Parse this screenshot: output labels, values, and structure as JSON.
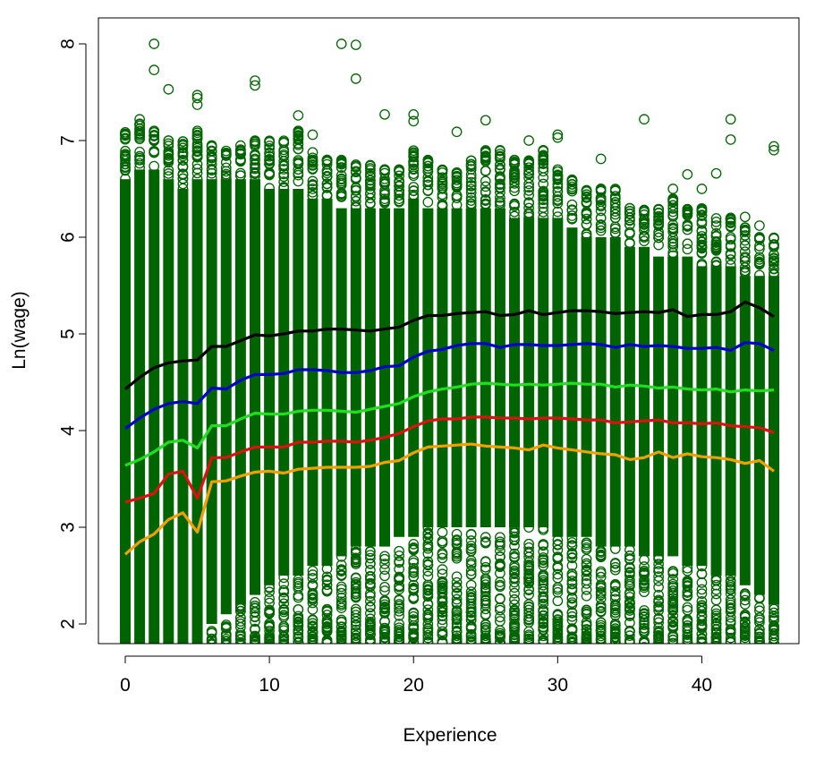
{
  "chart_data": {
    "type": "scatter",
    "title": "",
    "xlabel": "Experience",
    "ylabel": "Ln(wage)",
    "xlim": [
      0,
      45
    ],
    "ylim": [
      1.78,
      8.25
    ],
    "xticks": [
      "0",
      "10",
      "20",
      "30",
      "40"
    ],
    "yticks": [
      "2",
      "3",
      "4",
      "5",
      "6",
      "7",
      "8"
    ],
    "grid": false,
    "legend": "none",
    "point_color": "#006400",
    "scatter_band": {
      "x_values": [
        0,
        1,
        2,
        3,
        4,
        5,
        6,
        7,
        8,
        9,
        10,
        11,
        12,
        13,
        14,
        15,
        16,
        17,
        18,
        19,
        20,
        21,
        22,
        23,
        24,
        25,
        26,
        27,
        28,
        29,
        30,
        31,
        32,
        33,
        34,
        35,
        36,
        37,
        38,
        39,
        40,
        41,
        42,
        43,
        44,
        45
      ],
      "y_top": [
        7.1,
        7.2,
        7.1,
        7.0,
        7.0,
        7.1,
        6.95,
        6.9,
        6.95,
        7.0,
        7.0,
        7.0,
        7.1,
        6.9,
        6.8,
        6.8,
        6.75,
        6.75,
        6.7,
        6.7,
        6.9,
        6.8,
        6.7,
        6.7,
        6.8,
        6.9,
        6.9,
        6.8,
        6.8,
        6.9,
        6.7,
        6.6,
        6.5,
        6.5,
        6.5,
        6.3,
        6.3,
        6.3,
        6.4,
        6.3,
        6.3,
        6.2,
        6.2,
        6.1,
        6.0,
        6.0
      ],
      "y_dense_top": [
        6.6,
        6.7,
        6.7,
        6.6,
        6.5,
        6.6,
        6.6,
        6.6,
        6.6,
        6.6,
        6.5,
        6.5,
        6.5,
        6.4,
        6.4,
        6.3,
        6.3,
        6.3,
        6.3,
        6.3,
        6.4,
        6.3,
        6.3,
        6.3,
        6.3,
        6.3,
        6.3,
        6.2,
        6.2,
        6.2,
        6.2,
        6.1,
        6.0,
        6.0,
        6.0,
        5.9,
        5.9,
        5.8,
        5.8,
        5.8,
        5.7,
        5.7,
        5.7,
        5.6,
        5.6,
        5.6
      ],
      "y_dense_bottom": [
        1.78,
        1.78,
        1.78,
        1.78,
        1.78,
        1.78,
        2.0,
        2.1,
        2.2,
        2.3,
        2.4,
        2.5,
        2.5,
        2.6,
        2.6,
        2.7,
        2.8,
        2.8,
        2.8,
        2.9,
        2.9,
        3.0,
        3.0,
        3.0,
        3.0,
        3.0,
        3.0,
        3.0,
        3.0,
        3.0,
        2.9,
        2.9,
        2.9,
        2.8,
        2.8,
        2.8,
        2.7,
        2.7,
        2.7,
        2.6,
        2.6,
        2.5,
        2.5,
        2.4,
        2.3,
        2.2
      ],
      "y_bottom": [
        1.78,
        1.78,
        1.78,
        1.78,
        1.78,
        1.78,
        1.78,
        1.78,
        1.78,
        1.78,
        1.78,
        1.78,
        1.8,
        1.8,
        1.8,
        1.8,
        1.8,
        1.8,
        1.8,
        1.8,
        1.8,
        1.8,
        1.8,
        1.8,
        1.8,
        1.8,
        1.8,
        1.8,
        1.8,
        1.8,
        1.8,
        1.8,
        1.8,
        1.8,
        1.8,
        1.8,
        1.8,
        1.8,
        1.8,
        1.8,
        1.8,
        1.8,
        1.8,
        1.8,
        1.8,
        1.8
      ]
    },
    "outliers": [
      {
        "x": 2,
        "y": 8.0
      },
      {
        "x": 2,
        "y": 7.73
      },
      {
        "x": 3,
        "y": 7.53
      },
      {
        "x": 5,
        "y": 7.47
      },
      {
        "x": 5,
        "y": 7.44
      },
      {
        "x": 5,
        "y": 7.37
      },
      {
        "x": 9,
        "y": 7.62
      },
      {
        "x": 9,
        "y": 7.57
      },
      {
        "x": 15,
        "y": 8.0
      },
      {
        "x": 16,
        "y": 7.99
      },
      {
        "x": 16,
        "y": 7.64
      },
      {
        "x": 18,
        "y": 7.27
      },
      {
        "x": 20,
        "y": 7.27
      },
      {
        "x": 20,
        "y": 7.2
      },
      {
        "x": 1,
        "y": 7.22
      },
      {
        "x": 12,
        "y": 7.26
      },
      {
        "x": 13,
        "y": 7.06
      },
      {
        "x": 25,
        "y": 7.21
      },
      {
        "x": 23,
        "y": 7.09
      },
      {
        "x": 36,
        "y": 7.22
      },
      {
        "x": 42,
        "y": 7.22
      },
      {
        "x": 42,
        "y": 7.01
      },
      {
        "x": 45,
        "y": 6.94
      },
      {
        "x": 45,
        "y": 6.9
      },
      {
        "x": 41,
        "y": 6.66
      },
      {
        "x": 39,
        "y": 6.65
      },
      {
        "x": 43,
        "y": 6.21
      },
      {
        "x": 44,
        "y": 6.12
      },
      {
        "x": 30,
        "y": 7.06
      },
      {
        "x": 30,
        "y": 7.03
      },
      {
        "x": 28,
        "y": 7.0
      },
      {
        "x": 33,
        "y": 6.81
      },
      {
        "x": 38,
        "y": 6.5
      },
      {
        "x": 40,
        "y": 6.5
      },
      {
        "x": 5,
        "y": 1.85
      },
      {
        "x": 8,
        "y": 1.8
      },
      {
        "x": 12,
        "y": 1.87
      },
      {
        "x": 19,
        "y": 1.9
      },
      {
        "x": 24,
        "y": 1.95
      },
      {
        "x": 29,
        "y": 1.97
      },
      {
        "x": 33,
        "y": 1.85
      },
      {
        "x": 36,
        "y": 1.76
      },
      {
        "x": 38,
        "y": 1.97
      },
      {
        "x": 39,
        "y": 1.86
      },
      {
        "x": 41,
        "y": 1.94
      },
      {
        "x": 43,
        "y": 2.07
      },
      {
        "x": 44,
        "y": 1.78
      },
      {
        "x": 45,
        "y": 2.05
      },
      {
        "x": 36,
        "y": 2.1
      },
      {
        "x": 35,
        "y": 2.16
      },
      {
        "x": 34,
        "y": 1.92
      },
      {
        "x": 31,
        "y": 2.2
      },
      {
        "x": 27,
        "y": 2.2
      },
      {
        "x": 22,
        "y": 2.12
      }
    ],
    "series": [
      {
        "color": "#000000",
        "x": [
          0,
          1,
          2,
          3,
          4,
          5,
          6,
          7,
          8,
          9,
          10,
          11,
          12,
          13,
          14,
          15,
          16,
          17,
          18,
          19,
          20,
          21,
          22,
          23,
          24,
          25,
          26,
          27,
          28,
          29,
          30,
          31,
          32,
          33,
          34,
          35,
          36,
          37,
          38,
          39,
          40,
          41,
          42,
          43,
          44,
          45
        ],
        "y": [
          4.43,
          4.55,
          4.65,
          4.7,
          4.72,
          4.73,
          4.87,
          4.87,
          4.93,
          4.99,
          4.98,
          5.0,
          5.03,
          5.03,
          5.05,
          5.05,
          5.04,
          5.03,
          5.05,
          5.07,
          5.14,
          5.19,
          5.19,
          5.21,
          5.22,
          5.23,
          5.19,
          5.2,
          5.24,
          5.2,
          5.22,
          5.24,
          5.24,
          5.23,
          5.21,
          5.22,
          5.23,
          5.22,
          5.25,
          5.18,
          5.2,
          5.2,
          5.23,
          5.33,
          5.27,
          5.18
        ]
      },
      {
        "color": "#0000cc",
        "x": [
          0,
          1,
          2,
          3,
          4,
          5,
          6,
          7,
          8,
          9,
          10,
          11,
          12,
          13,
          14,
          15,
          16,
          17,
          18,
          19,
          20,
          21,
          22,
          23,
          24,
          25,
          26,
          27,
          28,
          29,
          30,
          31,
          32,
          33,
          34,
          35,
          36,
          37,
          38,
          39,
          40,
          41,
          42,
          43,
          44,
          45
        ],
        "y": [
          4.02,
          4.13,
          4.22,
          4.28,
          4.3,
          4.28,
          4.44,
          4.43,
          4.52,
          4.58,
          4.58,
          4.59,
          4.63,
          4.63,
          4.62,
          4.6,
          4.6,
          4.62,
          4.66,
          4.67,
          4.76,
          4.82,
          4.84,
          4.88,
          4.9,
          4.9,
          4.86,
          4.89,
          4.89,
          4.88,
          4.88,
          4.89,
          4.9,
          4.89,
          4.86,
          4.89,
          4.87,
          4.88,
          4.87,
          4.85,
          4.85,
          4.86,
          4.83,
          4.91,
          4.9,
          4.83
        ]
      },
      {
        "color": "#22dd22",
        "x": [
          0,
          1,
          2,
          3,
          4,
          5,
          6,
          7,
          8,
          9,
          10,
          11,
          12,
          13,
          14,
          15,
          16,
          17,
          18,
          19,
          20,
          21,
          22,
          23,
          24,
          25,
          26,
          27,
          28,
          29,
          30,
          31,
          32,
          33,
          34,
          35,
          36,
          37,
          38,
          39,
          40,
          41,
          42,
          43,
          44,
          45
        ],
        "y": [
          3.64,
          3.7,
          3.78,
          3.88,
          3.9,
          3.82,
          4.05,
          4.05,
          4.12,
          4.18,
          4.17,
          4.17,
          4.2,
          4.21,
          4.21,
          4.2,
          4.19,
          4.22,
          4.25,
          4.28,
          4.35,
          4.4,
          4.43,
          4.45,
          4.48,
          4.49,
          4.48,
          4.47,
          4.48,
          4.47,
          4.48,
          4.49,
          4.48,
          4.48,
          4.45,
          4.47,
          4.46,
          4.44,
          4.45,
          4.43,
          4.42,
          4.43,
          4.4,
          4.42,
          4.41,
          4.42
        ]
      },
      {
        "color": "#dd1111",
        "x": [
          0,
          1,
          2,
          3,
          4,
          5,
          6,
          7,
          8,
          9,
          10,
          11,
          12,
          13,
          14,
          15,
          16,
          17,
          18,
          19,
          20,
          21,
          22,
          23,
          24,
          25,
          26,
          27,
          28,
          29,
          30,
          31,
          32,
          33,
          34,
          35,
          36,
          37,
          38,
          39,
          40,
          41,
          42,
          43,
          44,
          45
        ],
        "y": [
          3.26,
          3.3,
          3.35,
          3.55,
          3.58,
          3.3,
          3.72,
          3.72,
          3.78,
          3.83,
          3.83,
          3.83,
          3.88,
          3.88,
          3.89,
          3.89,
          3.88,
          3.9,
          3.93,
          3.97,
          4.04,
          4.1,
          4.12,
          4.12,
          4.14,
          4.14,
          4.13,
          4.13,
          4.12,
          4.13,
          4.13,
          4.12,
          4.11,
          4.11,
          4.08,
          4.09,
          4.1,
          4.11,
          4.08,
          4.08,
          4.07,
          4.08,
          4.05,
          4.04,
          4.03,
          3.98
        ]
      },
      {
        "color": "#f0a000",
        "x": [
          0,
          1,
          2,
          3,
          4,
          5,
          6,
          7,
          8,
          9,
          10,
          11,
          12,
          13,
          14,
          15,
          16,
          17,
          18,
          19,
          20,
          21,
          22,
          23,
          24,
          25,
          26,
          27,
          28,
          29,
          30,
          31,
          32,
          33,
          34,
          35,
          36,
          37,
          38,
          39,
          40,
          41,
          42,
          43,
          44,
          45
        ],
        "y": [
          2.72,
          2.85,
          2.93,
          3.08,
          3.15,
          2.95,
          3.47,
          3.48,
          3.53,
          3.57,
          3.58,
          3.56,
          3.6,
          3.61,
          3.62,
          3.62,
          3.62,
          3.63,
          3.67,
          3.69,
          3.77,
          3.83,
          3.84,
          3.85,
          3.86,
          3.84,
          3.83,
          3.82,
          3.8,
          3.85,
          3.82,
          3.8,
          3.78,
          3.76,
          3.75,
          3.7,
          3.72,
          3.78,
          3.72,
          3.76,
          3.73,
          3.72,
          3.7,
          3.66,
          3.69,
          3.58
        ]
      }
    ]
  }
}
